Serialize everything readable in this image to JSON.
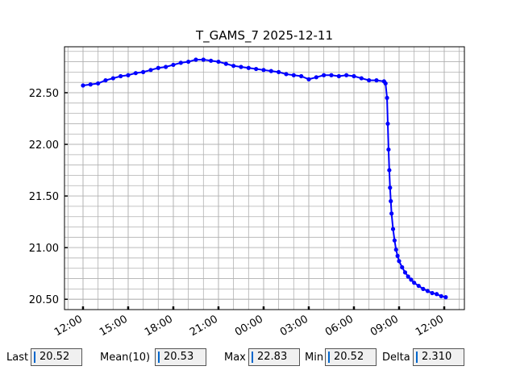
{
  "chart_data": {
    "type": "line",
    "title": "T_GAMS_7 2025-12-11",
    "x": [
      0,
      0.5,
      1,
      1.5,
      2,
      2.5,
      3,
      3.5,
      4,
      4.5,
      5,
      5.5,
      6,
      6.5,
      7,
      7.5,
      8,
      8.5,
      9,
      9.5,
      10,
      10.5,
      11,
      11.5,
      12,
      12.5,
      13,
      13.5,
      14,
      14.5,
      15,
      15.5,
      16,
      16.5,
      17,
      17.5,
      18,
      18.5,
      19,
      19.5,
      20,
      20.1,
      20.2,
      20.25,
      20.3,
      20.35,
      20.4,
      20.45,
      20.5,
      20.6,
      20.7,
      20.8,
      20.9,
      21,
      21.2,
      21.4,
      21.6,
      21.8,
      22,
      22.3,
      22.6,
      22.9,
      23.2,
      23.5,
      23.8,
      24.1
    ],
    "series": [
      {
        "color": "#0000ff",
        "values": [
          22.57,
          22.58,
          22.59,
          22.62,
          22.64,
          22.66,
          22.67,
          22.69,
          22.7,
          22.72,
          22.74,
          22.75,
          22.77,
          22.79,
          22.8,
          22.82,
          22.82,
          22.81,
          22.8,
          22.78,
          22.76,
          22.75,
          22.74,
          22.73,
          22.72,
          22.71,
          22.7,
          22.68,
          22.67,
          22.66,
          22.63,
          22.65,
          22.67,
          22.67,
          22.66,
          22.67,
          22.66,
          22.64,
          22.62,
          22.62,
          22.61,
          22.59,
          22.45,
          22.2,
          21.95,
          21.75,
          21.58,
          21.45,
          21.33,
          21.18,
          21.07,
          20.98,
          20.92,
          20.87,
          20.81,
          20.76,
          20.72,
          20.69,
          20.66,
          20.63,
          20.6,
          20.58,
          20.56,
          20.55,
          20.53,
          20.52
        ]
      }
    ],
    "xlim": [
      -1.23,
      25.34
    ],
    "xticks": [
      {
        "value": 0,
        "label": "12:00"
      },
      {
        "value": 3,
        "label": "15:00"
      },
      {
        "value": 6,
        "label": "18:00"
      },
      {
        "value": 9,
        "label": "21:00"
      },
      {
        "value": 12,
        "label": "00:00"
      },
      {
        "value": 15,
        "label": "03:00"
      },
      {
        "value": 18,
        "label": "06:00"
      },
      {
        "value": 21,
        "label": "09:00"
      },
      {
        "value": 24,
        "label": "12:00"
      }
    ],
    "ylim": [
      20.4,
      22.945
    ],
    "yticks": [
      {
        "value": 20.5,
        "label": "20.50"
      },
      {
        "value": 21,
        "label": "21.00"
      },
      {
        "value": 21.5,
        "label": "21.50"
      },
      {
        "value": 22,
        "label": "22.00"
      },
      {
        "value": 22.5,
        "label": "22.50"
      }
    ],
    "grid": true
  },
  "stats": [
    {
      "label": "Last",
      "value": "20.52"
    },
    {
      "label": "Mean(10)",
      "value": "20.53"
    },
    {
      "label": "Max",
      "value": "22.83"
    },
    {
      "label": "Min",
      "value": "20.52"
    },
    {
      "label": "Delta",
      "value": "2.310"
    }
  ]
}
